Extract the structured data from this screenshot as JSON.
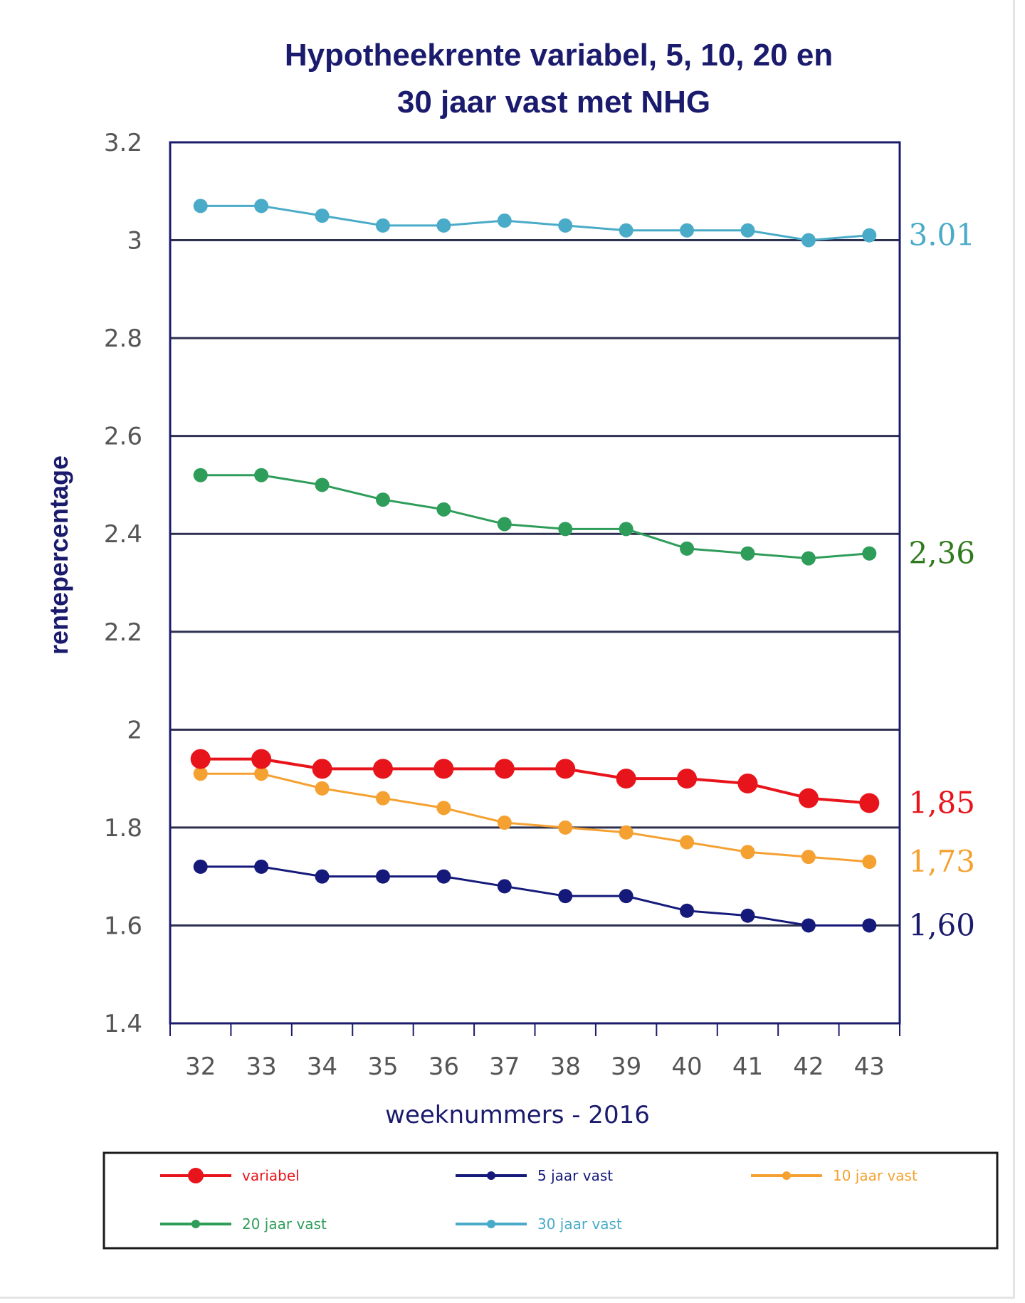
{
  "chart_data": {
    "type": "line",
    "title_lines": [
      "Hypotheekrente variabel, 5, 10, 20 en",
      "30 jaar vast met NHG"
    ],
    "xlabel": "weeknummers - 2016",
    "ylabel": "rentepercentage",
    "categories": [
      "32",
      "33",
      "34",
      "35",
      "36",
      "37",
      "38",
      "39",
      "40",
      "41",
      "42",
      "43"
    ],
    "ylim": [
      1.4,
      3.2
    ],
    "yticks": [
      "1.4",
      "1.6",
      "1.8",
      "2",
      "2.2",
      "2.4",
      "2.6",
      "2.8",
      "3",
      "3.2"
    ],
    "ytick_values": [
      1.4,
      1.6,
      1.8,
      2.0,
      2.2,
      2.4,
      2.6,
      2.8,
      3.0,
      3.2
    ],
    "grid": true,
    "legend_position": "bottom",
    "series": [
      {
        "name": "variabel",
        "color": "#e8141b",
        "values": [
          1.94,
          1.94,
          1.92,
          1.92,
          1.92,
          1.92,
          1.92,
          1.9,
          1.9,
          1.89,
          1.86,
          1.85
        ],
        "end_label": "1,85",
        "marker": "large"
      },
      {
        "name": "5 jaar vast",
        "color": "#151a7a",
        "values": [
          1.72,
          1.72,
          1.7,
          1.7,
          1.7,
          1.68,
          1.66,
          1.66,
          1.63,
          1.62,
          1.6,
          1.6
        ],
        "end_label": "1,60",
        "marker": "medium"
      },
      {
        "name": "10 jaar vast",
        "color": "#f5a131",
        "values": [
          1.91,
          1.91,
          1.88,
          1.86,
          1.84,
          1.81,
          1.8,
          1.79,
          1.77,
          1.75,
          1.74,
          1.73
        ],
        "end_label": "1,73",
        "marker": "medium"
      },
      {
        "name": "20 jaar vast",
        "color": "#2f9d5a",
        "values": [
          2.52,
          2.52,
          2.5,
          2.47,
          2.45,
          2.42,
          2.41,
          2.41,
          2.37,
          2.36,
          2.35,
          2.36
        ],
        "end_label": "2,36",
        "marker": "medium"
      },
      {
        "name": "30 jaar vast",
        "color": "#4aabc8",
        "values": [
          3.07,
          3.07,
          3.05,
          3.03,
          3.03,
          3.04,
          3.03,
          3.02,
          3.02,
          3.02,
          3.0,
          3.01
        ],
        "end_label": "3.01",
        "marker": "medium"
      }
    ],
    "end_label_colors": {
      "variabel": "#e8141b",
      "5 jaar vast": "#1b1b6e",
      "10 jaar vast": "#f5a131",
      "20 jaar vast": "#2f7a1e",
      "30 jaar vast": "#4aabc8"
    }
  }
}
